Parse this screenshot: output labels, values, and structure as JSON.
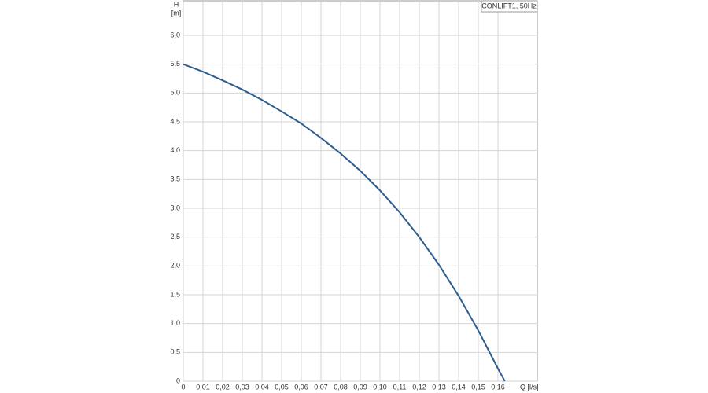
{
  "chart_data": {
    "type": "line",
    "legend_label": "CONLIFT1, 50Hz",
    "y_axis_label": "H",
    "y_axis_unit": "[m]",
    "x_axis_label": "Q [l/s]",
    "x": [
      0,
      0.01,
      0.02,
      0.03,
      0.04,
      0.05,
      0.06,
      0.07,
      0.08,
      0.09,
      0.1,
      0.11,
      0.12,
      0.13,
      0.14,
      0.15,
      0.16,
      0.1635
    ],
    "series": [
      {
        "name": "CONLIFT1, 50Hz",
        "color": "#2e5d8e",
        "values": [
          5.5,
          5.37,
          5.22,
          5.06,
          4.88,
          4.68,
          4.47,
          4.22,
          3.95,
          3.65,
          3.31,
          2.93,
          2.5,
          2.02,
          1.48,
          0.88,
          0.22,
          0
        ]
      }
    ],
    "xlim": [
      0,
      0.18
    ],
    "ylim": [
      0,
      6.6
    ],
    "xticks": [
      0,
      {
        "value": 0.01,
        "label": "0,01"
      },
      {
        "value": 0.02,
        "label": "0,02"
      },
      {
        "value": 0.03,
        "label": "0,03"
      },
      {
        "value": 0.04,
        "label": "0,04"
      },
      {
        "value": 0.05,
        "label": "0,05"
      },
      {
        "value": 0.06,
        "label": "0,06"
      },
      {
        "value": 0.07,
        "label": "0,07"
      },
      {
        "value": 0.08,
        "label": "0,08"
      },
      {
        "value": 0.09,
        "label": "0,09"
      },
      {
        "value": 0.1,
        "label": "0,10"
      },
      {
        "value": 0.11,
        "label": "0,11"
      },
      {
        "value": 0.12,
        "label": "0,12"
      },
      {
        "value": 0.13,
        "label": "0,13"
      },
      {
        "value": 0.14,
        "label": "0,14"
      },
      {
        "value": 0.15,
        "label": "0,15"
      },
      {
        "value": 0.16,
        "label": "0,16"
      }
    ],
    "yticks": [
      0,
      {
        "value": 0.5,
        "label": "0,5"
      },
      {
        "value": 1,
        "label": "1,0"
      },
      {
        "value": 1.5,
        "label": "1,5"
      },
      {
        "value": 2,
        "label": "2,0"
      },
      {
        "value": 2.5,
        "label": "2,5"
      },
      {
        "value": 3,
        "label": "3,0"
      },
      {
        "value": 3.5,
        "label": "3,5"
      },
      {
        "value": 4,
        "label": "4,0"
      },
      {
        "value": 4.5,
        "label": "4,5"
      },
      {
        "value": 5,
        "label": "5,0"
      },
      {
        "value": 5.5,
        "label": "5,5"
      },
      {
        "value": 6,
        "label": "6,0"
      }
    ],
    "grid": true
  }
}
